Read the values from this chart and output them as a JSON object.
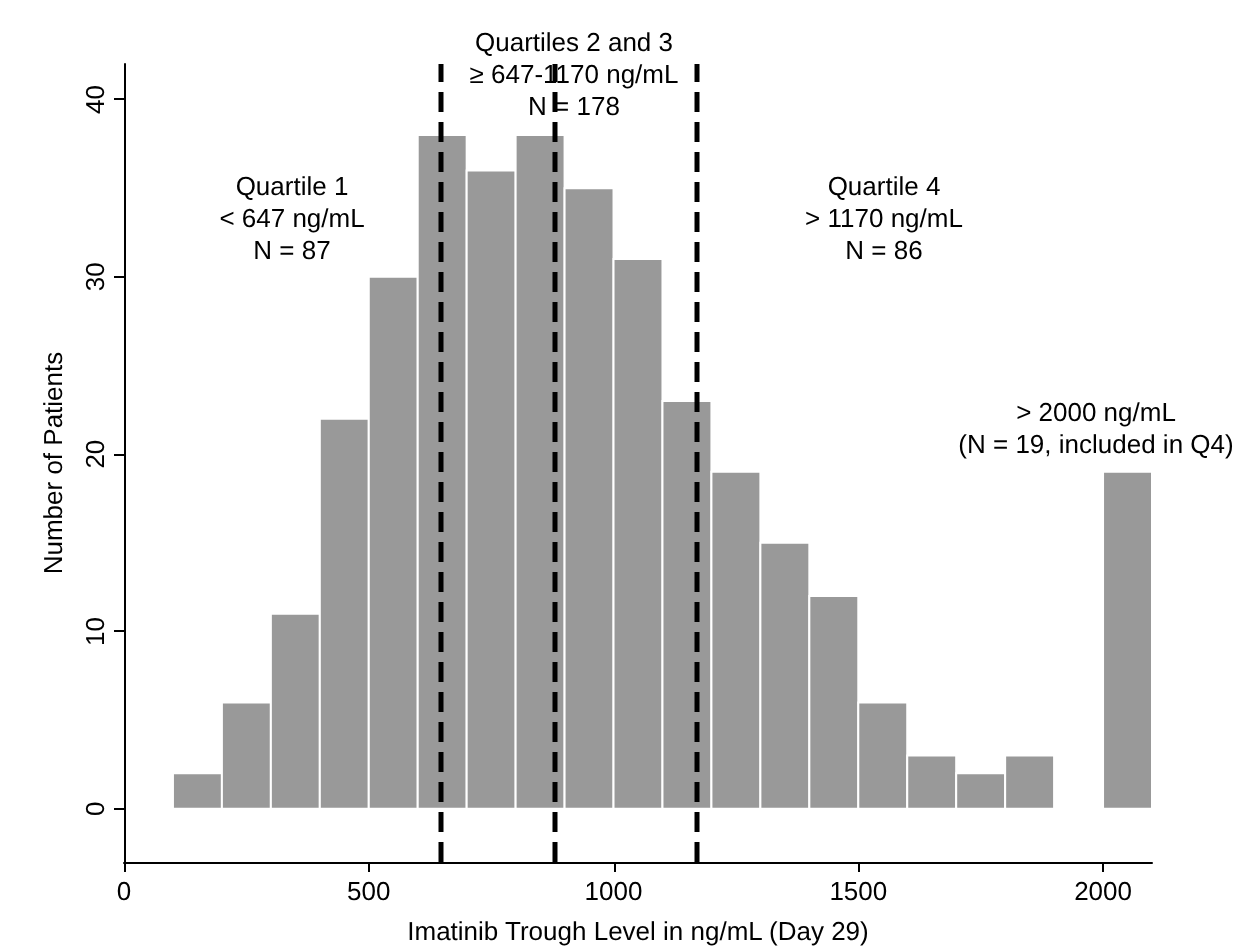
{
  "chart_data": {
    "type": "histogram",
    "xlabel": "Imatinib Trough Level in ng/mL (Day 29)",
    "ylabel": "Number of Patients",
    "bins": [
      100,
      200,
      300,
      400,
      500,
      600,
      700,
      800,
      900,
      1000,
      1100,
      1200,
      1300,
      1400,
      1500,
      1600,
      1700,
      1800,
      1900,
      2000,
      2100
    ],
    "values": [
      2,
      6,
      11,
      22,
      30,
      38,
      36,
      38,
      35,
      31,
      23,
      19,
      15,
      12,
      6,
      3,
      2,
      3,
      0,
      19
    ],
    "color": "#999999",
    "xlim": [
      0,
      2100
    ],
    "xticks": [
      0,
      500,
      1000,
      1500,
      2000
    ],
    "ylim": [
      -3,
      42
    ],
    "yticks": [
      0,
      10,
      20,
      30,
      40
    ],
    "grid": false,
    "ref_lines": [
      {
        "axis": "x",
        "value": 647,
        "color": "#000000",
        "line_style": "dashed"
      },
      {
        "axis": "x",
        "value": 880,
        "color": "#000000",
        "line_style": "dashed"
      },
      {
        "axis": "x",
        "value": 1170,
        "color": "#000000",
        "line_style": "dashed"
      }
    ],
    "annotations": [
      "Quartile 1\n< 647 ng/mL\nN = 87",
      "Quartiles 2 and 3\n≥ 647-1170 ng/mL\nN = 178",
      "Quartile 4\n> 1170 ng/mL\nN = 86",
      "> 2000 ng/mL\n(N = 19, included in Q4)"
    ]
  }
}
